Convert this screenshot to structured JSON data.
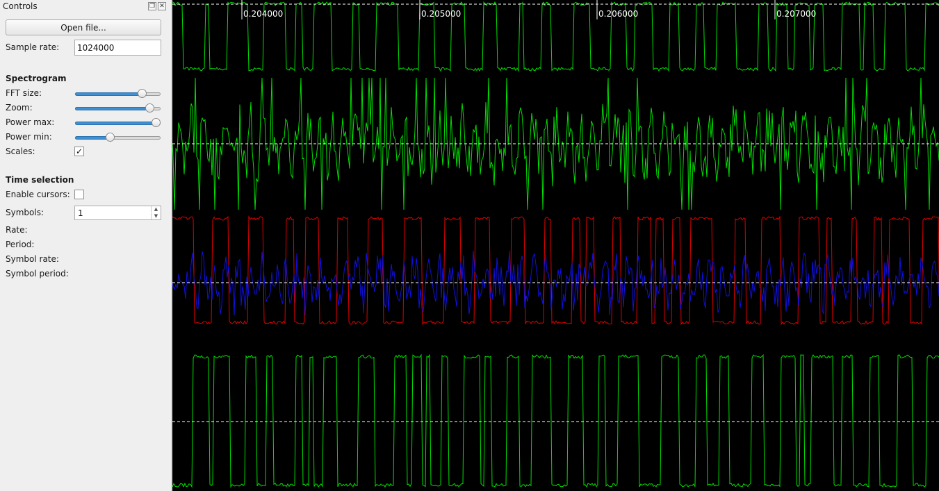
{
  "dock": {
    "title": "Controls",
    "float_icon": "float-icon",
    "close_icon": "close-icon",
    "open_file_label": "Open file...",
    "sample_rate_label": "Sample rate:",
    "sample_rate_value": "1024000"
  },
  "spectrogram": {
    "heading": "Spectrogram",
    "fft_size_label": "FFT size:",
    "fft_size_level": 0.82,
    "zoom_label": "Zoom:",
    "zoom_level": 0.92,
    "power_max_label": "Power max:",
    "power_max_level": 1.0,
    "power_min_label": "Power min:",
    "power_min_level": 0.4,
    "scales_label": "Scales:",
    "scales_checked": true
  },
  "time_selection": {
    "heading": "Time selection",
    "enable_cursors_label": "Enable cursors:",
    "enable_cursors_checked": false,
    "symbols_label": "Symbols:",
    "symbols_value": "1",
    "rate_label": "Rate:",
    "period_label": "Period:",
    "symbol_rate_label": "Symbol rate:",
    "symbol_period_label": "Symbol period:"
  },
  "plot": {
    "tick_labels": [
      "0.204000",
      "0.205000",
      "0.206000",
      "0.207000"
    ],
    "colors": {
      "background": "#000000",
      "trace_green": "#00e000",
      "trace_red": "#e00000",
      "trace_blue": "#1010e0",
      "axis": "#ffffff"
    }
  }
}
